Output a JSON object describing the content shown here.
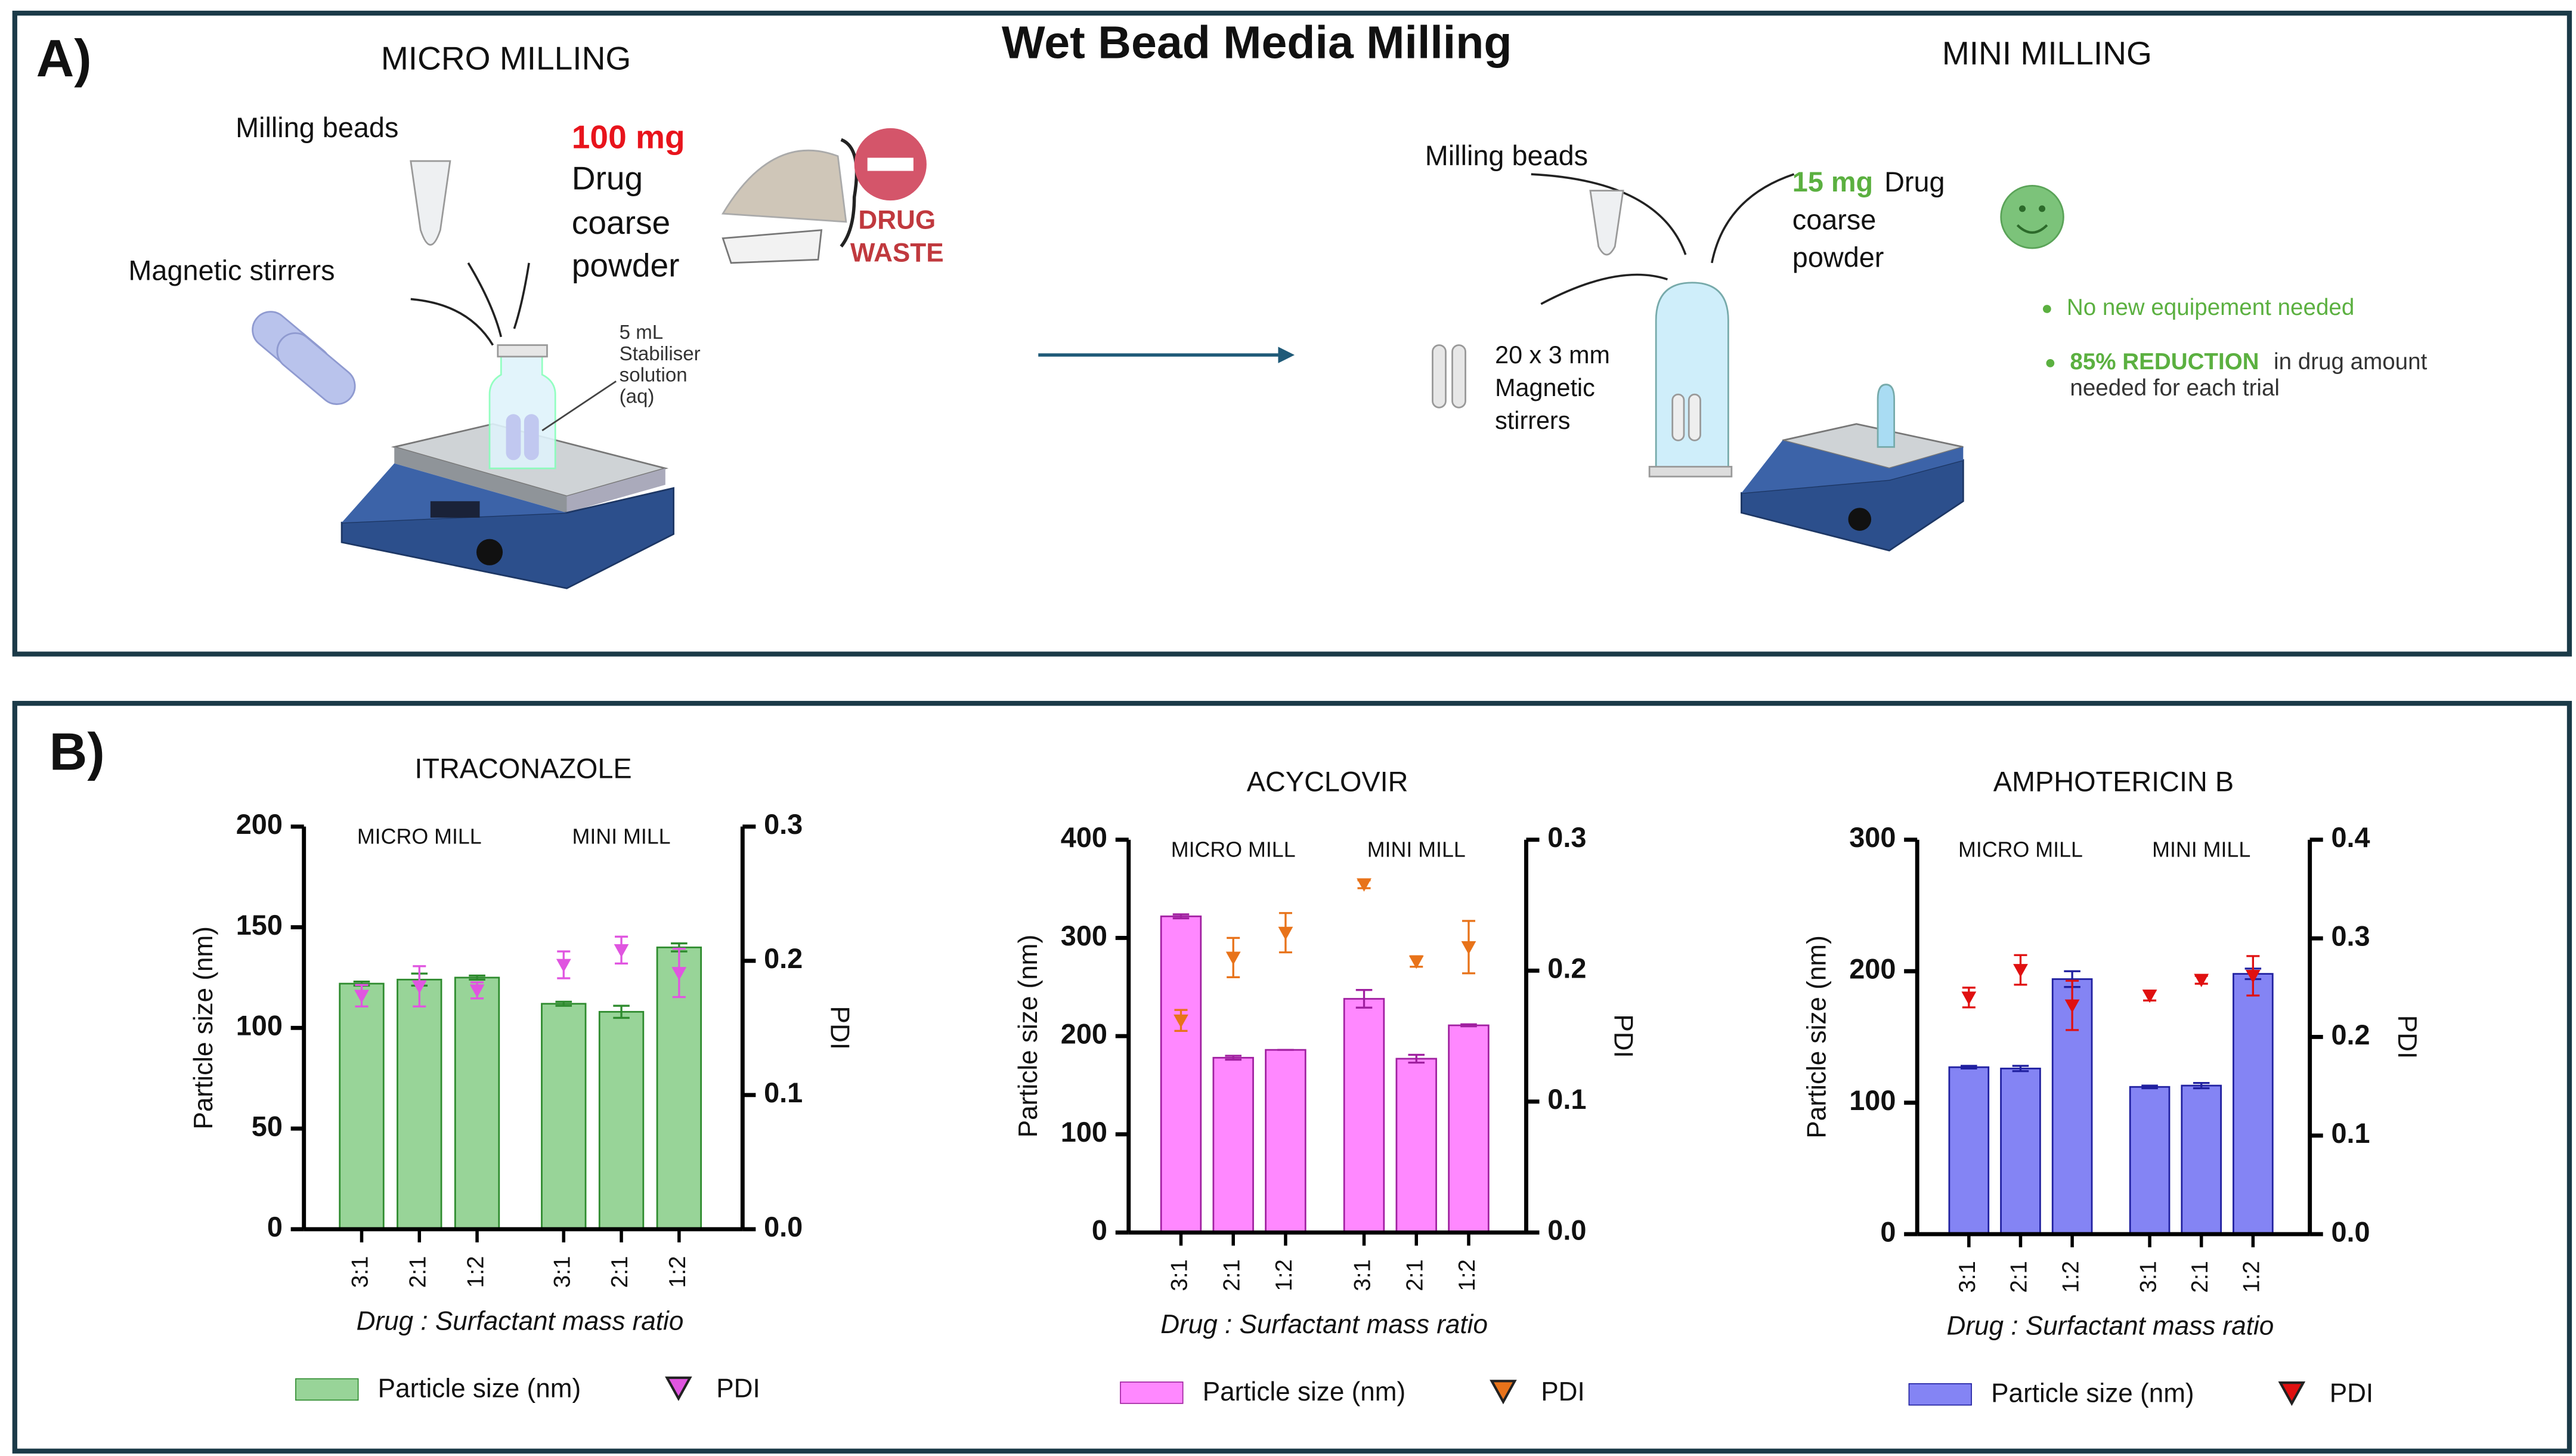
{
  "panel_a": {
    "label": "A)",
    "title": "Wet Bead Media Milling",
    "micro": {
      "heading": "MICRO MILLING",
      "beads": "Milling beads",
      "stirrers": "Magnetic stirrers",
      "amount": "100 mg",
      "drug_lines": [
        "Drug",
        "coarse",
        "powder"
      ],
      "waste": [
        "DRUG",
        "WASTE"
      ],
      "solution": [
        "5 mL",
        "Stabiliser",
        "solution",
        "(aq)"
      ]
    },
    "mini": {
      "heading": "MINI MILLING",
      "beads": "Milling beads",
      "amount": "15 mg",
      "drug_lines": [
        "Drug",
        "coarse",
        "powder"
      ],
      "stirrers": [
        "20 x 3 mm",
        "Magnetic",
        "stirrers"
      ],
      "benefit": "No new equipement needed",
      "reduction": {
        "highlight": "85% REDUCTION",
        "text": [
          "in drug amount",
          "needed for each trial"
        ]
      }
    }
  },
  "panel_b_label": "B)",
  "chart_data": [
    {
      "type": "bar",
      "title": "ITRACONAZOLE",
      "groups": [
        "MICRO MILL",
        "MINI MILL"
      ],
      "categories": [
        "3:1",
        "2:1",
        "1:2",
        "3:1",
        "2:1",
        "1:2"
      ],
      "xlabel": "Drug : Surfactant mass ratio",
      "ylabel": "Particle size (nm)",
      "y2label": "PDI",
      "ylim": [
        0,
        200
      ],
      "yticks": [
        0,
        50,
        100,
        150,
        200
      ],
      "y2lim": [
        0,
        0.3
      ],
      "y2ticks": [
        {
          "value": 0,
          "label": "0.0"
        },
        0.1,
        0.2,
        0.3
      ],
      "series": [
        {
          "name": "Particle size (nm)",
          "color": "#98d498",
          "edgecolor": "#2e8b2e",
          "values": [
            122,
            124,
            125,
            112,
            108,
            140
          ],
          "errors": [
            1,
            3,
            1,
            1,
            3,
            2
          ]
        },
        {
          "name": "PDI",
          "type": "scatter",
          "axis": "y2",
          "color": "#e055e0",
          "values": [
            0.174,
            0.181,
            0.178,
            0.197,
            0.208,
            0.191
          ],
          "errors": [
            0.008,
            0.015,
            0.006,
            0.01,
            0.01,
            0.018
          ]
        }
      ]
    },
    {
      "type": "bar",
      "title": "ACYCLOVIR",
      "groups": [
        "MICRO MILL",
        "MINI MILL"
      ],
      "categories": [
        "3:1",
        "2:1",
        "1:2",
        "3:1",
        "2:1",
        "1:2"
      ],
      "xlabel": "Drug : Surfactant mass ratio",
      "ylabel": "Particle size (nm)",
      "y2label": "PDI",
      "ylim": [
        0,
        400
      ],
      "yticks": [
        0,
        100,
        200,
        300,
        400
      ],
      "y2lim": [
        0,
        0.3
      ],
      "y2ticks": [
        {
          "value": 0,
          "label": "0.0"
        },
        0.1,
        0.2,
        0.3
      ],
      "series": [
        {
          "name": "Particle size (nm)",
          "color": "#ff88ff",
          "edgecolor": "#a020a0",
          "values": [
            322,
            178,
            186,
            238,
            177,
            211
          ],
          "errors": [
            2,
            2,
            0,
            9,
            4,
            1
          ]
        },
        {
          "name": "PDI",
          "type": "scatter",
          "axis": "y2",
          "color": "#e8731a",
          "values": [
            0.162,
            0.21,
            0.229,
            0.266,
            0.207,
            0.218
          ],
          "errors": [
            0.008,
            0.015,
            0.015,
            0.003,
            0.004,
            0.02
          ]
        }
      ]
    },
    {
      "type": "bar",
      "title": "AMPHOTERICIN B",
      "groups": [
        "MICRO MILL",
        "MINI MILL"
      ],
      "categories": [
        "3:1",
        "2:1",
        "1:2",
        "3:1",
        "2:1",
        "1:2"
      ],
      "xlabel": "Drug : Surfactant mass ratio",
      "ylabel": "Particle size (nm)",
      "y2label": "PDI",
      "ylim": [
        0,
        300
      ],
      "yticks": [
        0,
        100,
        200,
        300
      ],
      "y2lim": [
        0,
        0.4
      ],
      "y2ticks": [
        {
          "value": 0,
          "label": "0.0"
        },
        0.1,
        0.2,
        0.3,
        0.4
      ],
      "series": [
        {
          "name": "Particle size (nm)",
          "color": "#8484f4",
          "edgecolor": "#2020a0",
          "values": [
            127,
            126,
            194,
            112,
            113,
            198
          ],
          "errors": [
            1,
            2,
            6,
            1,
            2,
            4
          ]
        },
        {
          "name": "PDI",
          "type": "scatter",
          "axis": "y2",
          "color": "#e01010",
          "values": [
            0.24,
            0.268,
            0.232,
            0.242,
            0.258,
            0.262
          ],
          "errors": [
            0.01,
            0.015,
            0.025,
            0.005,
            0.004,
            0.02
          ]
        }
      ]
    }
  ]
}
